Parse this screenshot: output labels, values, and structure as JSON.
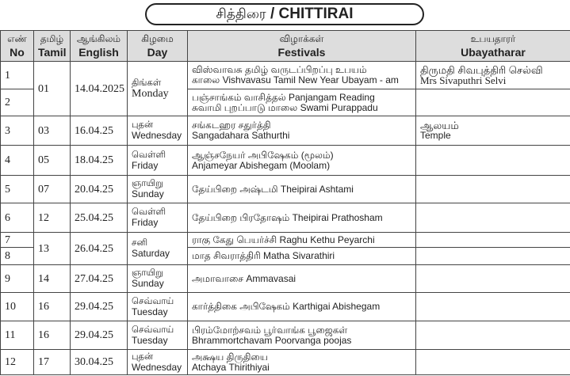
{
  "title": {
    "tamil": "சித்திரை",
    "sep": "/",
    "english": "CHITTIRAI"
  },
  "headers": [
    {
      "ta": "எண்",
      "en": "No"
    },
    {
      "ta": "தமிழ்",
      "en": "Tamil"
    },
    {
      "ta": "ஆங்கிலம்",
      "en": "English"
    },
    {
      "ta": "கிழமை",
      "en": "Day"
    },
    {
      "ta": "விழாக்கள்",
      "en": "Festivals"
    },
    {
      "ta": "உபயதாரர்",
      "en": "Ubayatharar"
    }
  ],
  "groups": [
    {
      "tamil": "01",
      "date": "14.04.2025",
      "day_ta": "திங்கள்",
      "day_en": "Monday",
      "rows": [
        {
          "no": "1",
          "fest": [
            "விஸ்வாவசு தமிழ் வருடப்பிறப்பு உபயம்",
            "காலை  Vishvavasu Tamil New Year Ubayam - am"
          ],
          "ubay": [
            "திருமதி சிவபுத்திரி செல்வி",
            "Mrs Sivaputhri Selvi"
          ]
        },
        {
          "no": "2",
          "fest": [
            "பஞ்சாங்கம் வாசித்தல்  Panjangam Reading",
            "சுவாமி புறப்பாடு மாலை  Swami Purappadu"
          ],
          "ubay": []
        }
      ]
    },
    {
      "tamil": "03",
      "date": "16.04.25",
      "day_ta": "புதன்",
      "day_en": "Wednesday",
      "rows": [
        {
          "no": "3",
          "fest": [
            "சங்கடஹர சதுர்த்தி",
            "Sangadahara Sathurthi"
          ],
          "ubay": [
            "ஆலயம்",
            "Temple"
          ]
        }
      ]
    },
    {
      "tamil": "05",
      "date": "18.04.25",
      "day_ta": "வெள்ளி",
      "day_en": "Friday",
      "rows": [
        {
          "no": "4",
          "fest": [
            "ஆஞ்சநேயர் அபிஷேகம் (மூலம்)",
            "Anjameyar Abishegam (Moolam)"
          ],
          "ubay": []
        }
      ]
    },
    {
      "tamil": "07",
      "date": "20.04.25",
      "day_ta": "ஞாயிறு",
      "day_en": "Sunday",
      "rows": [
        {
          "no": "5",
          "fest": [
            "தேய்பிறை அஷ்டமி  Theipirai Ashtami"
          ],
          "ubay": []
        }
      ]
    },
    {
      "tamil": "12",
      "date": "25.04.25",
      "day_ta": "வெள்ளி",
      "day_en": "Friday",
      "rows": [
        {
          "no": "6",
          "fest": [
            "தேய்பிறை பிரதோஷம்  Theipirai Prathosham"
          ],
          "ubay": []
        }
      ]
    },
    {
      "tamil": "13",
      "date": "26.04.25",
      "day_ta": "சனி",
      "day_en": "Saturday",
      "rows": [
        {
          "no": "7",
          "fest": [
            "ராகு கேது பெயர்ச்சி  Raghu Kethu Peyarchi"
          ],
          "ubay": []
        },
        {
          "no": "8",
          "fest": [
            "மாத சிவராத்திரி  Matha Sivarathiri"
          ],
          "ubay": []
        }
      ]
    },
    {
      "tamil": "14",
      "date": "27.04.25",
      "day_ta": "ஞாயிறு",
      "day_en": "Sunday",
      "rows": [
        {
          "no": "9",
          "fest": [
            "அமாவாசை  Ammavasai"
          ],
          "ubay": []
        }
      ]
    },
    {
      "tamil": "16",
      "date": "29.04.25",
      "day_ta": "செவ்வாய்",
      "day_en": "Tuesday",
      "rows": [
        {
          "no": "10",
          "fest": [
            "கார்த்திகை அபிஷேகம்  Karthigai Abishegam"
          ],
          "ubay": []
        }
      ]
    },
    {
      "tamil": "16",
      "date": "29.04.25",
      "day_ta": "செவ்வாய்",
      "day_en": "Tuesday",
      "rows": [
        {
          "no": "11",
          "fest": [
            "பிரம்மோற்சவம் பூர்வாங்க பூஜைகள்",
            "Bhrammortchavam Poorvanga poojas"
          ],
          "ubay": []
        }
      ]
    },
    {
      "tamil": "17",
      "date": "30.04.25",
      "day_ta": "புதன்",
      "day_en": "Wednesday",
      "rows": [
        {
          "no": "12",
          "fest": [
            "அக்ஷய திருதியை",
            "Atchaya Thirithiyai"
          ],
          "ubay": []
        }
      ]
    }
  ]
}
